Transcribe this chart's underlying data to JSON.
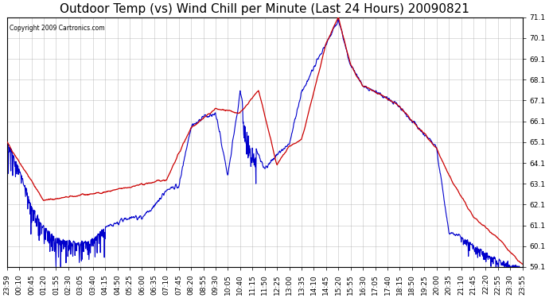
{
  "title": "Outdoor Temp (vs) Wind Chill per Minute (Last 24 Hours) 20090821",
  "copyright_text": "Copyright 2009 Cartronics.com",
  "ylim": [
    59.1,
    71.1
  ],
  "yticks": [
    59.1,
    60.1,
    61.1,
    62.1,
    63.1,
    64.1,
    65.1,
    66.1,
    67.1,
    68.1,
    69.1,
    70.1,
    71.1
  ],
  "background_color": "#ffffff",
  "plot_bg_color": "#ffffff",
  "grid_color": "#aaaaaa",
  "line_color_red": "#cc0000",
  "line_color_blue": "#0000cc",
  "title_fontsize": 11,
  "tick_fontsize": 6.5,
  "xtick_labels": [
    "23:59",
    "00:10",
    "00:45",
    "01:20",
    "01:55",
    "02:30",
    "03:05",
    "03:40",
    "04:15",
    "04:50",
    "05:25",
    "06:00",
    "06:35",
    "07:10",
    "07:45",
    "08:20",
    "08:55",
    "09:30",
    "10:05",
    "10:40",
    "11:15",
    "11:50",
    "12:25",
    "13:00",
    "13:35",
    "14:10",
    "14:45",
    "15:20",
    "15:55",
    "16:30",
    "17:05",
    "17:40",
    "18:15",
    "18:50",
    "19:25",
    "20:00",
    "20:35",
    "21:10",
    "21:45",
    "22:20",
    "22:55",
    "23:30",
    "23:55"
  ],
  "red_key_x": [
    0,
    3,
    8,
    13,
    15,
    17,
    19,
    20.5,
    21.5,
    22,
    23,
    24,
    26,
    27,
    28,
    29,
    30,
    31,
    32,
    33,
    34,
    35,
    36,
    37,
    38,
    39,
    40,
    41,
    42
  ],
  "red_key_y": [
    65.1,
    62.3,
    62.7,
    63.3,
    65.8,
    66.7,
    66.5,
    67.6,
    65.2,
    64.0,
    64.9,
    65.2,
    69.8,
    71.1,
    68.8,
    67.8,
    67.5,
    67.2,
    66.8,
    66.1,
    65.5,
    64.8,
    63.5,
    62.5,
    61.5,
    61.0,
    60.5,
    59.8,
    59.2
  ],
  "blue_key_x": [
    0,
    1,
    2,
    3,
    4,
    5,
    6,
    7,
    8,
    9,
    10,
    11,
    12,
    13,
    14,
    15,
    16,
    17,
    18,
    19,
    20,
    21,
    22,
    23,
    24,
    26,
    27,
    28,
    29,
    30,
    31,
    32,
    33,
    34,
    35,
    36,
    37,
    38,
    39,
    40,
    41,
    42
  ],
  "blue_key_y": [
    65.1,
    63.8,
    62.0,
    61.0,
    60.5,
    60.3,
    60.2,
    60.4,
    61.0,
    61.2,
    61.5,
    61.5,
    62.0,
    62.8,
    63.0,
    65.8,
    66.3,
    66.5,
    63.5,
    67.5,
    65.2,
    63.8,
    64.5,
    65.0,
    67.5,
    69.8,
    71.0,
    68.8,
    67.8,
    67.5,
    67.2,
    66.8,
    66.1,
    65.5,
    64.8,
    60.8,
    60.5,
    60.1,
    59.8,
    59.4,
    59.2,
    59.1
  ]
}
